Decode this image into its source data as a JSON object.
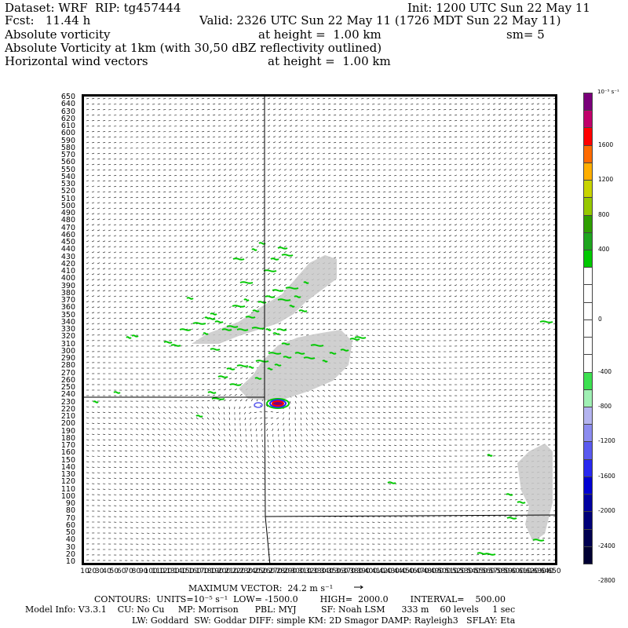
{
  "header": {
    "line1_left": "Dataset: WRF  RIP: tg457444",
    "line1_right": "Init: 1200 UTC Sun 22 May 11",
    "line2_left": "Fcst:   11.44 h",
    "line2_right": "Valid: 2326 UTC Sun 22 May 11 (1726 MDT Sun 22 May 11)",
    "line3_field": "Absolute vorticity",
    "line3_height": "at height =  1.00 km",
    "line3_sm": "sm= 5",
    "line4": "Absolute Vorticity at 1km (with 30,50 dBZ reflectivity outlined)",
    "line5_field": "Horizontal wind vectors",
    "line5_height": "at height =  1.00 km"
  },
  "y_axis": {
    "labels": [
      "650",
      "640",
      "630",
      "620",
      "610",
      "600",
      "590",
      "580",
      "570",
      "560",
      "550",
      "540",
      "530",
      "520",
      "510",
      "500",
      "490",
      "480",
      "470",
      "460",
      "450",
      "440",
      "430",
      "420",
      "410",
      "400",
      "390",
      "380",
      "370",
      "360",
      "350",
      "340",
      "330",
      "320",
      "310",
      "300",
      "290",
      "280",
      "270",
      "260",
      "250",
      "240",
      "230",
      "220",
      "210",
      "200",
      "190",
      "180",
      "170",
      "160",
      "150",
      "140",
      "130",
      "120",
      "110",
      "100",
      "90",
      "80",
      "70",
      "60",
      "50",
      "40",
      "30",
      "20",
      "10"
    ]
  },
  "x_axis": {
    "labels": [
      "10",
      "20",
      "30",
      "40",
      "50",
      "60",
      "70",
      "80",
      "90",
      "100",
      "110",
      "120",
      "130",
      "140",
      "150",
      "160",
      "170",
      "180",
      "190",
      "200",
      "210",
      "220",
      "230",
      "240",
      "250",
      "260",
      "270",
      "280",
      "290",
      "300",
      "310",
      "320",
      "330",
      "340",
      "350",
      "360",
      "370",
      "380",
      "390",
      "400",
      "410",
      "420",
      "430",
      "440",
      "450",
      "460",
      "470",
      "480",
      "490",
      "500",
      "510",
      "520",
      "530",
      "540",
      "550",
      "560",
      "570",
      "580",
      "590",
      "600",
      "610",
      "620",
      "630",
      "640",
      "650"
    ]
  },
  "colorbar": {
    "unit_label": "10⁻⁵ s⁻¹",
    "levels": [
      {
        "color": "#7a007a"
      },
      {
        "color": "#c0006a"
      },
      {
        "color": "#ff0000"
      },
      {
        "color": "#ff6a00"
      },
      {
        "color": "#ffae00"
      },
      {
        "color": "#c8d400"
      },
      {
        "color": "#96c800"
      },
      {
        "color": "#2e9e00"
      },
      {
        "color": "#1ea51e"
      },
      {
        "color": "#00c800"
      },
      {
        "color": "#ffffff"
      },
      {
        "color": "#ffffff"
      },
      {
        "color": "#ffffff"
      },
      {
        "color": "#ffffff"
      },
      {
        "color": "#ffffff"
      },
      {
        "color": "#ffffff"
      },
      {
        "color": "#3ce050"
      },
      {
        "color": "#a0f0b4"
      },
      {
        "color": "#b4b4f0"
      },
      {
        "color": "#8c8cf0"
      },
      {
        "color": "#5a5af0"
      },
      {
        "color": "#2828f0"
      },
      {
        "color": "#0000d2"
      },
      {
        "color": "#0000a0"
      },
      {
        "color": "#000078"
      },
      {
        "color": "#000050"
      },
      {
        "color": "#000032"
      }
    ],
    "tick_labels": [
      {
        "text": "1600",
        "level": 3
      },
      {
        "text": "1200",
        "level": 5
      },
      {
        "text": "800",
        "level": 7
      },
      {
        "text": "400",
        "level": 9
      },
      {
        "text": "0",
        "level": 13
      },
      {
        "text": "-400",
        "level": 16
      },
      {
        "text": "-800",
        "level": 18
      },
      {
        "text": "-1200",
        "level": 20
      },
      {
        "text": "-1600",
        "level": 22
      },
      {
        "text": "-2000",
        "level": 24
      },
      {
        "text": "-2400",
        "level": 26
      },
      {
        "text": "-2800",
        "level": 28
      }
    ]
  },
  "footer": {
    "max_vector_label": "MAXIMUM VECTOR:  24.2 m s⁻¹",
    "contours": "CONTOURS:  UNITS=10⁻⁵ s⁻¹  LOW= -1500.0        HIGH=  2000.0        INTERVAL=    500.00",
    "model_info": "Model Info: V3.3.1    CU: No Cu     MP: Morrison      PBL: MYJ         SF: Noah LSM      333 m    60 levels     1 sec",
    "model_info2": "LW: Goddard  SW: Goddar DIFF: simple KM: 2D Smagor DAMP: Rayleigh3   SFLAY: Eta"
  },
  "map": {
    "border_color": "#000000",
    "vector_color": "#000000",
    "reflectivity_shade": "#c8c8c8",
    "positive_vorticity_color": "#00c800",
    "storm_core_colors": [
      "#ff0000",
      "#7a007a",
      "#2828f0",
      "#00c800"
    ]
  }
}
